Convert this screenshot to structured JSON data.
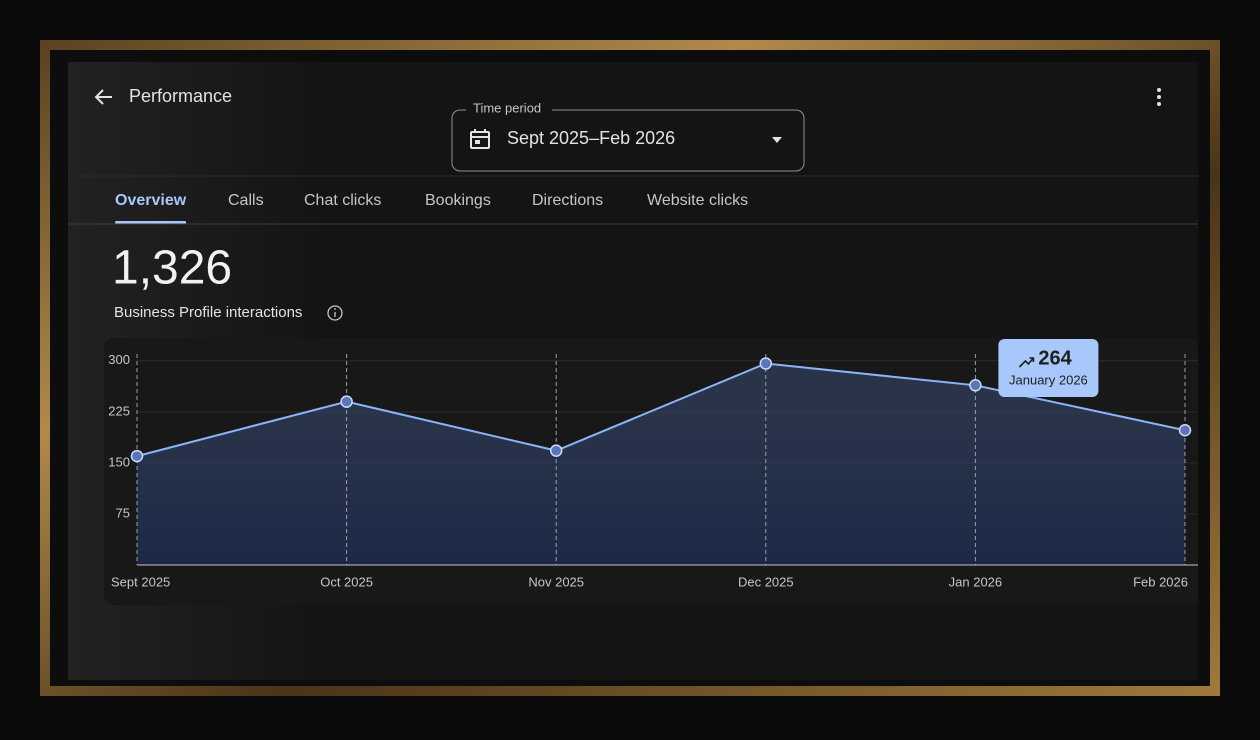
{
  "header": {
    "title": "Performance"
  },
  "time_period": {
    "label": "Time period",
    "value": "Sept 2025–Feb 2026"
  },
  "tabs": [
    "Overview",
    "Calls",
    "Chat clicks",
    "Bookings",
    "Directions",
    "Website clicks"
  ],
  "summary": {
    "total": "1,326",
    "label": "Business Profile interactions"
  },
  "chart_data": {
    "type": "line",
    "categories": [
      "Sept 2025",
      "Oct 2025",
      "Nov 2025",
      "Dec 2025",
      "Jan 2026",
      "Feb 2026"
    ],
    "values": [
      160,
      240,
      168,
      296,
      264,
      198
    ],
    "color": "#8ab4f8",
    "ylim": [
      0,
      310
    ],
    "yticks": [
      75,
      150,
      225,
      300
    ],
    "grid": true,
    "tooltip_label": "January 2026"
  }
}
